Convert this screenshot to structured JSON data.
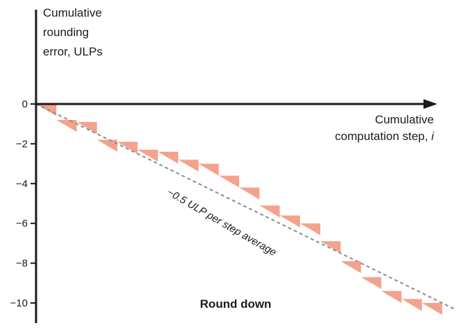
{
  "chart_data": {
    "type": "area",
    "title": "Round down",
    "ylabel": [
      "Cumulative",
      "rounding",
      "error, ULPs"
    ],
    "xlabel_main": "Cumulative",
    "xlabel_line2": "computation step, ",
    "xlabel_var": "i",
    "ylim": [
      -10.5,
      0
    ],
    "yticks": [
      "0",
      "−2",
      "−4",
      "−6",
      "−8",
      "−10"
    ],
    "ytick_values": [
      0,
      -2,
      -4,
      -6,
      -8,
      -10
    ],
    "steps": 20,
    "step_values": [
      0,
      -0.8,
      -0.9,
      -1.8,
      -1.9,
      -2.3,
      -2.4,
      -2.8,
      -3.0,
      -3.6,
      -4.2,
      -5.1,
      -5.6,
      -6.0,
      -6.9,
      -7.9,
      -8.7,
      -9.4,
      -9.8,
      -10.0
    ],
    "average_line": {
      "label": "−0.5 ULP per step average",
      "slope": -0.5
    },
    "grid": false,
    "colors": {
      "steps": "#f4a28c",
      "axis": "#1a1a1a",
      "average": "#8c8c8c"
    }
  }
}
